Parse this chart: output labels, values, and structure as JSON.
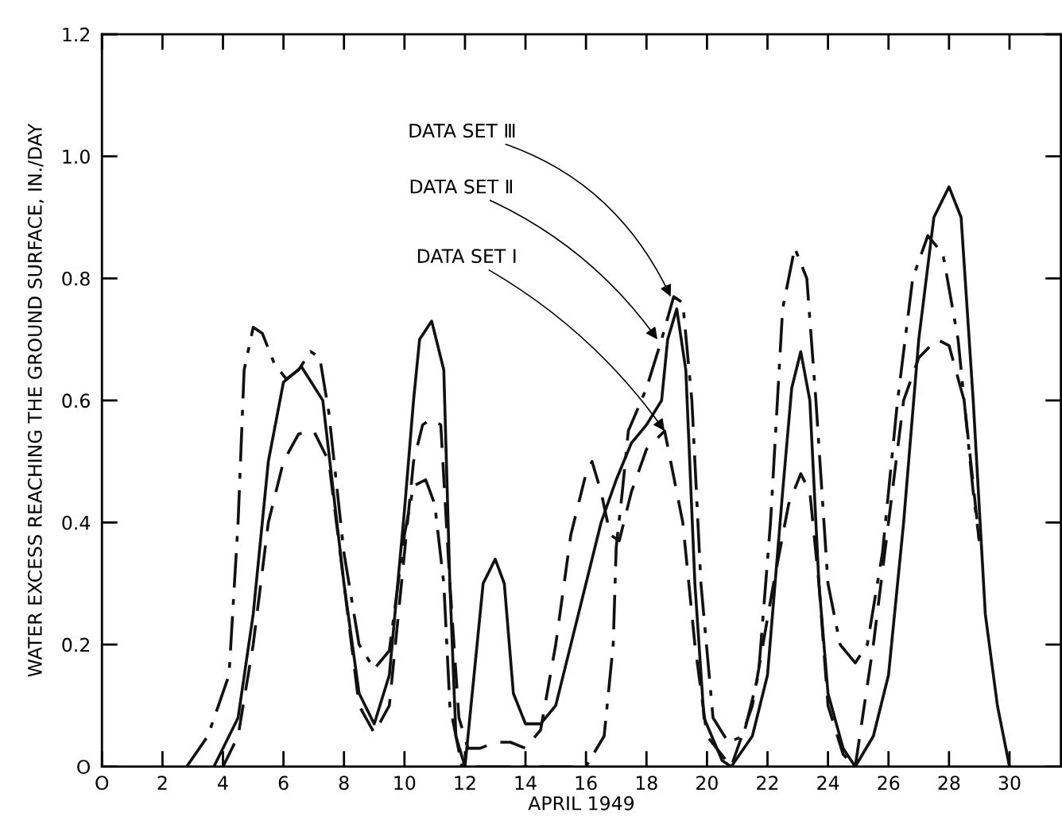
{
  "chart_data": {
    "type": "line",
    "xlabel": "APRIL 1949",
    "ylabel": "WATER EXCESS REACHING THE GROUND SURFACE, IN./DAY",
    "xlim": [
      0,
      31.7
    ],
    "ylim": [
      0,
      1.2
    ],
    "xticks": [
      {
        "value": 0,
        "label": "O"
      },
      2,
      4,
      6,
      8,
      10,
      12,
      14,
      16,
      18,
      20,
      22,
      24,
      26,
      28,
      30
    ],
    "yticks": [
      {
        "value": 0,
        "label": "O"
      },
      0.2,
      0.4,
      0.6,
      0.8,
      {
        "value": 1.0,
        "label": "1.0"
      },
      1.2
    ],
    "grid": false,
    "legend": false,
    "marker": "none",
    "series": [
      {
        "color": "#111111",
        "line_style": "dashed",
        "x": [
          4.0,
          4.5,
          5,
          5.5,
          6,
          6.5,
          7,
          7.5,
          8,
          8.5,
          9,
          9.5,
          10,
          10.3,
          10.6,
          10.9,
          11.2,
          11.5,
          11.8,
          12.1,
          12.5,
          13,
          13.5,
          14,
          14.5,
          15,
          15.5,
          16.0,
          16.2,
          16.5,
          16.8,
          17.1,
          17.5,
          18,
          18.6,
          19.2,
          19.6,
          20.0,
          20.8,
          21.5,
          22.2,
          22.7,
          23.1,
          23.4,
          23.7,
          24,
          24.5,
          24.9,
          25.5,
          26.0,
          26.5,
          27,
          27.6,
          28,
          28.5,
          29
        ],
        "values": [
          0,
          0.05,
          0.2,
          0.4,
          0.5,
          0.545,
          0.55,
          0.5,
          0.3,
          0.1,
          0.055,
          0.1,
          0.35,
          0.5,
          0.56,
          0.57,
          0.56,
          0.3,
          0.08,
          0.03,
          0.03,
          0.04,
          0.04,
          0.03,
          0.06,
          0.2,
          0.38,
          0.48,
          0.5,
          0.45,
          0.38,
          0.37,
          0.45,
          0.52,
          0.55,
          0.4,
          0.2,
          0.05,
          0,
          0.1,
          0.3,
          0.43,
          0.48,
          0.45,
          0.3,
          0.1,
          0.02,
          0,
          0.2,
          0.4,
          0.6,
          0.67,
          0.7,
          0.69,
          0.6,
          0.37
        ]
      },
      {
        "color": "#111111",
        "line_style": "solid",
        "x": [
          3.7,
          4.5,
          5,
          5.5,
          6,
          6.6,
          7.3,
          8,
          8.5,
          9,
          9.5,
          10,
          10.3,
          10.5,
          10.9,
          11.3,
          11.5,
          11.7,
          12,
          12.3,
          12.6,
          13,
          13.3,
          13.6,
          14,
          14.5,
          15,
          15.5,
          16.5,
          17,
          17.5,
          18,
          18.5,
          18.7,
          19,
          19.3,
          19.6,
          19.9,
          20.5,
          20.8,
          21.5,
          22,
          22.5,
          22.8,
          23.1,
          23.4,
          23.7,
          24.0,
          24.5,
          24.9,
          25.5,
          26,
          26.5,
          27,
          27.5,
          28,
          28.4,
          28.8,
          29.2,
          29.6,
          30
        ],
        "values": [
          0,
          0.08,
          0.25,
          0.5,
          0.63,
          0.655,
          0.6,
          0.3,
          0.12,
          0.07,
          0.15,
          0.42,
          0.6,
          0.7,
          0.73,
          0.65,
          0.3,
          0.05,
          0,
          0.15,
          0.3,
          0.34,
          0.3,
          0.12,
          0.07,
          0.07,
          0.1,
          0.2,
          0.4,
          0.47,
          0.53,
          0.56,
          0.6,
          0.7,
          0.75,
          0.65,
          0.3,
          0.08,
          0.01,
          0,
          0.05,
          0.15,
          0.45,
          0.62,
          0.68,
          0.6,
          0.3,
          0.12,
          0.03,
          0,
          0.05,
          0.15,
          0.4,
          0.7,
          0.9,
          0.95,
          0.9,
          0.6,
          0.25,
          0.1,
          0
        ]
      },
      {
        "color": "#111111",
        "line_style": "dashdot",
        "x": [
          2.8,
          3.5,
          4.2,
          4.5,
          4.7,
          5.0,
          5.3,
          5.7,
          6.1,
          6.5,
          6.9,
          7.2,
          7.5,
          8,
          8.5,
          9,
          9.5,
          10,
          10.3,
          10.7,
          11.0,
          11.3,
          11.5,
          11.9,
          13,
          14,
          15,
          16,
          16.6,
          16.9,
          17.0,
          17.2,
          17.4,
          18,
          18.5,
          18.9,
          19.2,
          19.5,
          19.8,
          20.2,
          20.7,
          21.2,
          21.7,
          22.1,
          22.5,
          22.9,
          23.3,
          23.6,
          24,
          24.4,
          24.9,
          25.3,
          25.8,
          26.3,
          26.8,
          27.3,
          27.8,
          28.3,
          28.8,
          29
        ],
        "values": [
          0,
          0.05,
          0.15,
          0.4,
          0.65,
          0.72,
          0.71,
          0.66,
          0.635,
          0.65,
          0.68,
          0.67,
          0.58,
          0.35,
          0.2,
          0.16,
          0.19,
          0.38,
          0.46,
          0.47,
          0.43,
          0.3,
          0.1,
          0,
          0,
          0,
          0,
          0,
          0.05,
          0.2,
          0.36,
          0.45,
          0.55,
          0.62,
          0.7,
          0.77,
          0.76,
          0.6,
          0.3,
          0.08,
          0.04,
          0.05,
          0.15,
          0.4,
          0.75,
          0.85,
          0.8,
          0.6,
          0.3,
          0.2,
          0.17,
          0.2,
          0.35,
          0.6,
          0.8,
          0.87,
          0.84,
          0.7,
          0.45,
          0.37
        ]
      }
    ],
    "annotations": [
      {
        "text": "DATA SET Ⅲ",
        "x": 18.8,
        "y": 0.77
      },
      {
        "text": "DATA SET Ⅱ",
        "x": 18.36,
        "y": 0.7
      },
      {
        "text": "DATA SET I",
        "x": 18.6,
        "y": 0.55
      }
    ]
  }
}
